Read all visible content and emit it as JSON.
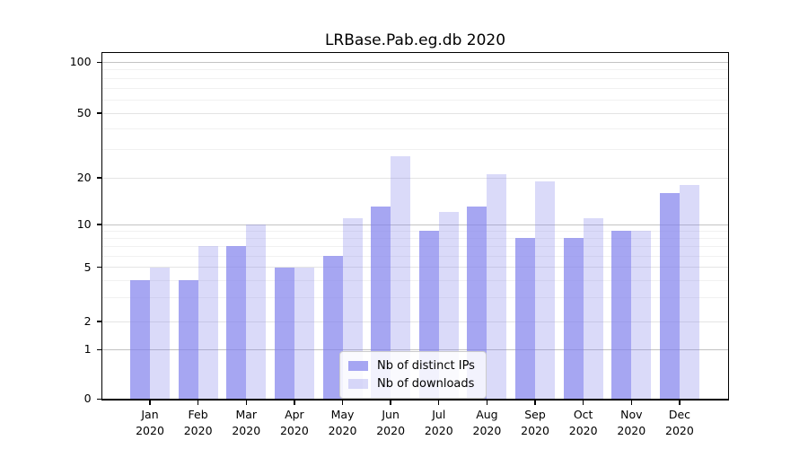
{
  "title": "LRBase.Pab.eg.db 2020",
  "y_axis": {
    "tick_labels": [
      "0",
      "1",
      "2",
      "5",
      "10",
      "20",
      "50",
      "100"
    ]
  },
  "x_axis": {
    "months": [
      "Jan",
      "Feb",
      "Mar",
      "Apr",
      "May",
      "Jun",
      "Jul",
      "Aug",
      "Sep",
      "Oct",
      "Nov",
      "Dec"
    ],
    "year": "2020"
  },
  "legend": {
    "items": [
      {
        "label": "Nb of distinct IPs"
      },
      {
        "label": "Nb of downloads"
      }
    ]
  },
  "colors": {
    "bar_base": "#8080ec",
    "distinct_ips_rgba": "rgba(128,128,236,0.70)",
    "downloads_rgba": "rgba(128,128,236,0.29)",
    "grid_major": "#c3c3c3",
    "grid_labeled": "#e4e4e4",
    "grid_minor": "#f1f1f1",
    "axis": "#000000"
  },
  "chart_data": {
    "type": "bar",
    "title": "LRBase.Pab.eg.db 2020",
    "categories": [
      "Jan 2020",
      "Feb 2020",
      "Mar 2020",
      "Apr 2020",
      "May 2020",
      "Jun 2020",
      "Jul 2020",
      "Aug 2020",
      "Sep 2020",
      "Oct 2020",
      "Nov 2020",
      "Dec 2020"
    ],
    "series": [
      {
        "name": "Nb of distinct IPs",
        "values": [
          4,
          4,
          7,
          5,
          6,
          13,
          9,
          13,
          8,
          8,
          9,
          16
        ]
      },
      {
        "name": "Nb of downloads",
        "values": [
          5,
          7,
          10,
          5,
          11,
          27,
          12,
          21,
          19,
          11,
          9,
          18
        ]
      }
    ],
    "xlabel": "",
    "ylabel": "",
    "yscale": "log-like (0 baseline, log above 1)",
    "yticks": [
      0,
      1,
      2,
      5,
      10,
      20,
      50,
      100
    ],
    "minor_gridlines": [
      3,
      4,
      6,
      7,
      8,
      9,
      30,
      40,
      60,
      70,
      80,
      90
    ],
    "ylim": [
      0,
      114
    ],
    "grid": true,
    "legend_position": "inside lower center"
  }
}
